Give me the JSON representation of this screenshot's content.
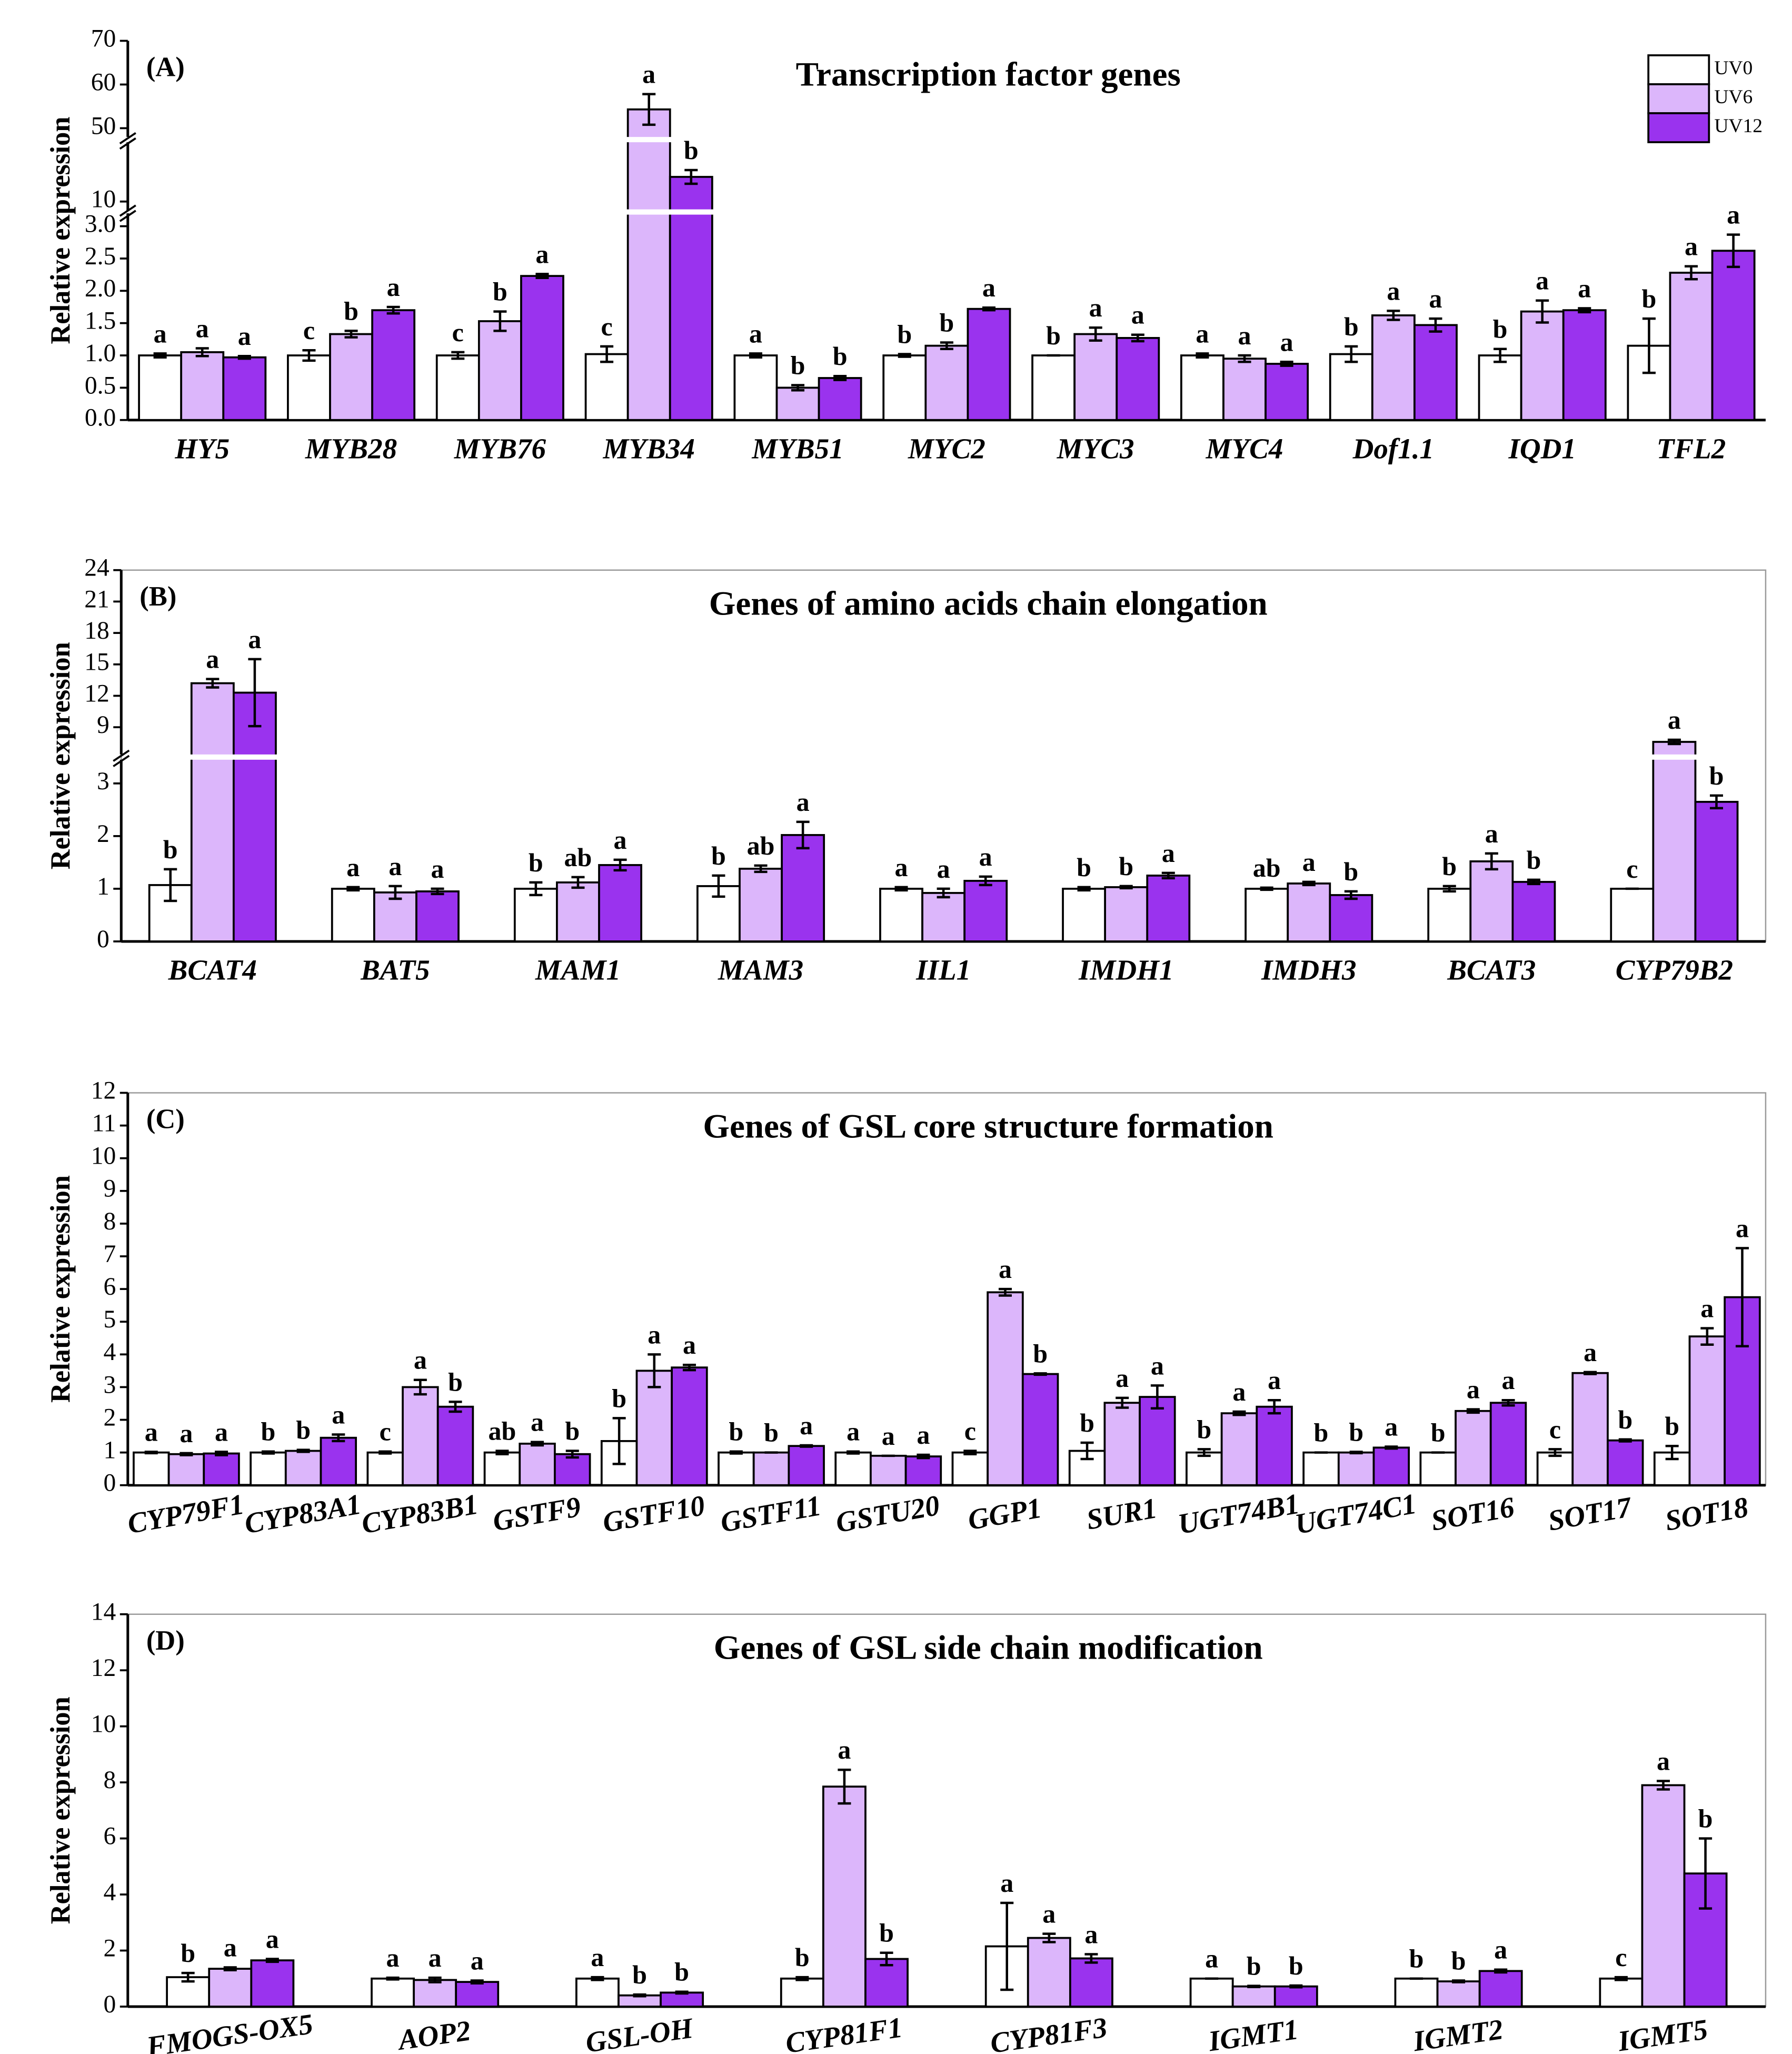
{
  "chart_data": [
    {
      "type": "bar",
      "panel_label": "(A)",
      "title": "Transcription factor genes",
      "y_label": "Relative expression",
      "legend": "upper right",
      "categories": [
        "HY5",
        "MYB28",
        "MYB76",
        "MYB34",
        "MYB51",
        "MYC2",
        "MYC3",
        "MYC4",
        "Dof1.1",
        "IQD1",
        "TFL2"
      ],
      "y_segments": [
        {
          "ylim": [
            0,
            3.2
          ],
          "yticks": [
            {
              "value": 0,
              "label": "0.0"
            },
            0.5,
            {
              "value": 1,
              "label": "1.0"
            },
            1.5,
            {
              "value": 2,
              "label": "2.0"
            },
            2.5,
            {
              "value": 3,
              "label": "3.0"
            }
          ]
        },
        {
          "ylim": [
            8,
            23
          ],
          "yticks": [
            10
          ]
        },
        {
          "ylim": [
            48,
            70
          ],
          "yticks": [
            50,
            60,
            70
          ]
        }
      ],
      "series": [
        {
          "name": "UV0",
          "color": "#ffffff",
          "values": [
            1.0,
            1.0,
            1.0,
            1.02,
            1.0,
            1.0,
            1.0,
            1.0,
            1.02,
            1.0,
            1.15
          ],
          "errors": [
            0.03,
            0.08,
            0.05,
            0.12,
            0.03,
            0.02,
            0,
            0.03,
            0.12,
            0.1,
            0.42
          ],
          "letters": [
            "a",
            "c",
            "c",
            "c",
            "a",
            "b",
            "b",
            "a",
            "b",
            "b",
            "b"
          ]
        },
        {
          "name": "UV6",
          "color": "#dcb6fb",
          "values": [
            1.05,
            1.33,
            1.53,
            54.3,
            0.5,
            1.15,
            1.33,
            0.95,
            1.62,
            1.68,
            2.28
          ],
          "errors": [
            0.06,
            0.05,
            0.15,
            3.5,
            0.04,
            0.05,
            0.1,
            0.05,
            0.07,
            0.17,
            0.1
          ],
          "letters": [
            "a",
            "b",
            "b",
            "a",
            "b",
            "b",
            "a",
            "a",
            "a",
            "a",
            "a"
          ]
        },
        {
          "name": "UV12",
          "color": "#9a33ee",
          "values": [
            0.97,
            1.7,
            2.23,
            15.4,
            0.65,
            1.72,
            1.27,
            0.87,
            1.47,
            1.7,
            2.62
          ],
          "errors": [
            0.02,
            0.05,
            0.03,
            1.5,
            0.03,
            0.02,
            0.05,
            0.03,
            0.1,
            0.03,
            0.25
          ],
          "letters": [
            "a",
            "a",
            "a",
            "b",
            "b",
            "a",
            "a",
            "a",
            "a",
            "a",
            "a"
          ]
        }
      ]
    },
    {
      "type": "bar",
      "panel_label": "(B)",
      "title": "Genes of amino acids chain elongation",
      "y_label": "Relative expression",
      "categories": [
        "BCAT4",
        "BAT5",
        "MAM1",
        "MAM3",
        "IIL1",
        "IMDH1",
        "IMDH3",
        "BCAT3",
        "CYP79B2"
      ],
      "y_segments": [
        {
          "ylim": [
            0,
            3.45
          ],
          "yticks": [
            0,
            1,
            2,
            3
          ]
        },
        {
          "ylim": [
            6.4,
            24
          ],
          "yticks": [
            9,
            12,
            15,
            18,
            21,
            24
          ]
        }
      ],
      "series": [
        {
          "color": "#ffffff",
          "values": [
            1.07,
            1.0,
            1.0,
            1.05,
            1.0,
            1.0,
            1.0,
            1.0,
            1.0
          ],
          "errors": [
            0.3,
            0.03,
            0.12,
            0.2,
            0.03,
            0.03,
            0.02,
            0.05,
            0
          ],
          "letters": [
            "b",
            "a",
            "b",
            "b",
            "a",
            "b",
            "ab",
            "b",
            "c"
          ]
        },
        {
          "color": "#dcb6fb",
          "values": [
            13.2,
            0.93,
            1.12,
            1.38,
            0.92,
            1.03,
            1.1,
            1.52,
            7.6
          ],
          "errors": [
            0.4,
            0.12,
            0.1,
            0.06,
            0.08,
            0.02,
            0.03,
            0.15,
            0.2
          ],
          "letters": [
            "a",
            "a",
            "ab",
            "ab",
            "a",
            "b",
            "a",
            "a",
            "a"
          ]
        },
        {
          "color": "#9a33ee",
          "values": [
            12.3,
            0.95,
            1.45,
            2.02,
            1.15,
            1.25,
            0.88,
            1.13,
            2.65
          ],
          "errors": [
            3.2,
            0.05,
            0.1,
            0.25,
            0.08,
            0.05,
            0.07,
            0.04,
            0.12
          ],
          "letters": [
            "a",
            "a",
            "a",
            "a",
            "a",
            "a",
            "b",
            "b",
            "b"
          ]
        }
      ]
    },
    {
      "type": "bar",
      "panel_label": "(C)",
      "title": "Genes of GSL core structure formation",
      "y_label": "Relative expression",
      "categories": [
        "CYP79F1",
        "CYP83A1",
        "CYP83B1",
        "GSTF9",
        "GSTF10",
        "GSTF11",
        "GSTU20",
        "GGP1",
        "SUR1",
        "UGT74B1",
        "UGT74C1",
        "SOT16",
        "SOT17",
        "SOT18"
      ],
      "ylim": [
        0,
        12
      ],
      "yticks": [
        0,
        1,
        2,
        3,
        4,
        5,
        6,
        7,
        8,
        9,
        10,
        11,
        12
      ],
      "series": [
        {
          "color": "#ffffff",
          "values": [
            1,
            1,
            1,
            1,
            1.35,
            1,
            1,
            1,
            1.05,
            1,
            1,
            1,
            1,
            1
          ],
          "errors": [
            0.02,
            0.03,
            0.03,
            0.05,
            0.7,
            0.03,
            0.03,
            0.05,
            0.25,
            0.1,
            0,
            0,
            0.1,
            0.2
          ],
          "letters": [
            "a",
            "b",
            "c",
            "ab",
            "b",
            "b",
            "a",
            "c",
            "b",
            "b",
            "b",
            "b",
            "c",
            "b"
          ]
        },
        {
          "color": "#dcb6fb",
          "values": [
            0.95,
            1.05,
            3.0,
            1.27,
            3.5,
            1,
            0.9,
            5.9,
            2.52,
            2.2,
            1,
            2.27,
            3.43,
            4.55
          ],
          "errors": [
            0.03,
            0.03,
            0.22,
            0.05,
            0.5,
            0,
            0,
            0.1,
            0.15,
            0.05,
            0.02,
            0.05,
            0.03,
            0.25
          ],
          "letters": [
            "a",
            "b",
            "a",
            "a",
            "a",
            "b",
            "a",
            "a",
            "a",
            "a",
            "b",
            "a",
            "a",
            "a"
          ]
        },
        {
          "color": "#9a33ee",
          "values": [
            0.97,
            1.45,
            2.4,
            0.95,
            3.6,
            1.2,
            0.88,
            3.4,
            2.7,
            2.4,
            1.15,
            2.52,
            1.37,
            5.75
          ],
          "errors": [
            0.05,
            0.1,
            0.15,
            0.1,
            0.08,
            0.02,
            0.05,
            0.02,
            0.35,
            0.2,
            0.03,
            0.08,
            0.03,
            1.5
          ],
          "letters": [
            "a",
            "a",
            "b",
            "b",
            "a",
            "a",
            "a",
            "b",
            "a",
            "a",
            "a",
            "a",
            "b",
            "a"
          ]
        }
      ]
    },
    {
      "type": "bar",
      "panel_label": "(D)",
      "title": "Genes of  GSL side chain modification",
      "y_label": "Relative expression",
      "categories": [
        "FMOGS-OX5",
        "AOP2",
        "GSL-OH",
        "CYP81F1",
        "CYP81F3",
        "IGMT1",
        "IGMT2",
        "IGMT5"
      ],
      "ylim": [
        0,
        14
      ],
      "yticks": [
        0,
        2,
        4,
        6,
        8,
        10,
        12,
        14
      ],
      "series": [
        {
          "color": "#ffffff",
          "values": [
            1.05,
            1,
            1,
            1,
            2.15,
            1,
            1,
            1
          ],
          "errors": [
            0.15,
            0.03,
            0.05,
            0.05,
            1.55,
            0,
            0,
            0.05
          ],
          "letters": [
            "b",
            "a",
            "a",
            "b",
            "a",
            "a",
            "b",
            "c"
          ]
        },
        {
          "color": "#dcb6fb",
          "values": [
            1.35,
            0.95,
            0.4,
            7.85,
            2.45,
            0.72,
            0.9,
            7.9
          ],
          "errors": [
            0.05,
            0.08,
            0.03,
            0.6,
            0.15,
            0.02,
            0.03,
            0.15
          ],
          "letters": [
            "a",
            "a",
            "b",
            "a",
            "a",
            "b",
            "b",
            "a"
          ]
        },
        {
          "color": "#9a33ee",
          "values": [
            1.65,
            0.88,
            0.5,
            1.7,
            1.72,
            0.72,
            1.27,
            4.75
          ],
          "errors": [
            0.05,
            0.05,
            0.03,
            0.22,
            0.15,
            0.03,
            0.05,
            1.25
          ],
          "letters": [
            "a",
            "a",
            "b",
            "b",
            "a",
            "b",
            "a",
            "b"
          ]
        }
      ]
    }
  ]
}
